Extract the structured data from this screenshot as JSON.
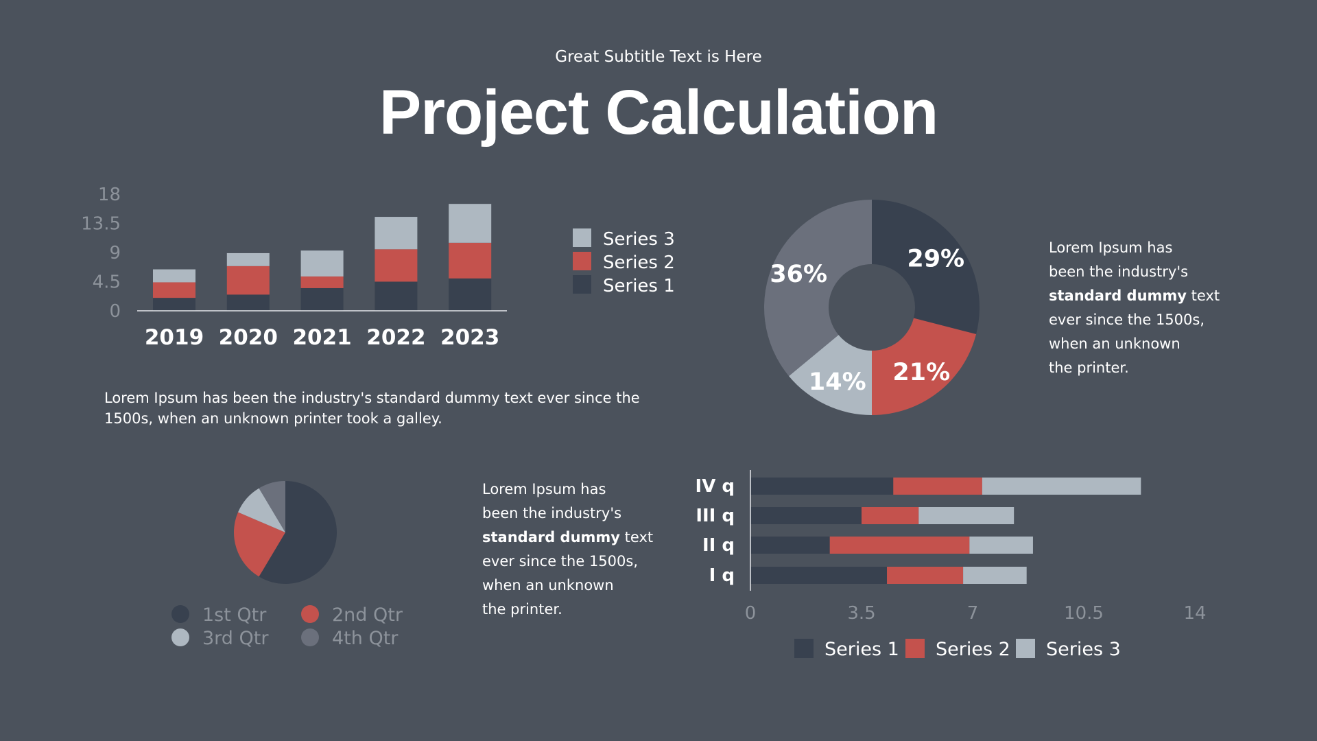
{
  "header": {
    "subtitle": "Great Subtitle Text is Here",
    "title": "Project Calculation"
  },
  "colors": {
    "background": "#4b525c",
    "series1": "#38414f",
    "series2": "#c4524d",
    "series3": "#aeb8c1",
    "series4": "#6b707c",
    "tick": "#8d939b"
  },
  "paragraph1": {
    "line1": "Lorem Ipsum has been the industry's standard dummy text ever since the",
    "line2": "1500s, when an unknown printer took a galley."
  },
  "paragraph_right": {
    "l1": "Lorem Ipsum has",
    "l2": "been the industry's",
    "l3_bold": "standard dummy",
    "l3_rest": " text",
    "l4": "ever since the 1500s,",
    "l5": "when an unknown",
    "l6": "the printer."
  },
  "paragraph_middle": {
    "l1": "Lorem Ipsum has",
    "l2": "been the industry's",
    "l3_bold": "standard dummy",
    "l3_rest": " text",
    "l4": "ever since the 1500s,",
    "l5": "when an unknown",
    "l6": "the printer."
  },
  "chart_data": [
    {
      "type": "bar",
      "orientation": "vertical",
      "stacked": true,
      "categories": [
        "2019",
        "2020",
        "2021",
        "2022",
        "2023"
      ],
      "series": [
        {
          "name": "Series 1",
          "values": [
            2,
            2.5,
            3.5,
            4.5,
            5
          ]
        },
        {
          "name": "Series 2",
          "values": [
            2.4,
            4.4,
            1.8,
            5,
            5.5
          ]
        },
        {
          "name": "Series 3",
          "values": [
            2,
            2,
            4,
            5,
            6
          ]
        }
      ],
      "ylim": [
        0,
        18
      ],
      "yticks": [
        "0",
        "4.5",
        "9",
        "13.5",
        "18"
      ],
      "legend": "right",
      "legend_order": [
        "Series 3",
        "Series 2",
        "Series 1"
      ],
      "grid": false
    },
    {
      "type": "pie",
      "donut": true,
      "slices": [
        {
          "label": "29%",
          "value": 29
        },
        {
          "label": "21%",
          "value": 21
        },
        {
          "label": "14%",
          "value": 14
        },
        {
          "label": "36%",
          "value": 36
        }
      ]
    },
    {
      "type": "pie",
      "slices": [
        {
          "name": "1st Qtr",
          "value": 8.2
        },
        {
          "name": "2nd Qtr",
          "value": 3.2
        },
        {
          "name": "3rd Qtr",
          "value": 1.4
        },
        {
          "name": "4th Qtr",
          "value": 1.2
        }
      ],
      "legend": "bottom"
    },
    {
      "type": "bar",
      "orientation": "horizontal",
      "stacked": true,
      "categories": [
        "I q",
        "II q",
        "III q",
        "IV q"
      ],
      "series": [
        {
          "name": "Series 1",
          "values": [
            4.3,
            2.5,
            3.5,
            4.5
          ]
        },
        {
          "name": "Series 2",
          "values": [
            2.4,
            4.4,
            1.8,
            2.8
          ]
        },
        {
          "name": "Series 3",
          "values": [
            2,
            2,
            3,
            5
          ]
        }
      ],
      "xlim": [
        0,
        14
      ],
      "xticks": [
        "0",
        "3.5",
        "7",
        "10.5",
        "14"
      ],
      "legend": "bottom",
      "grid": false
    }
  ]
}
